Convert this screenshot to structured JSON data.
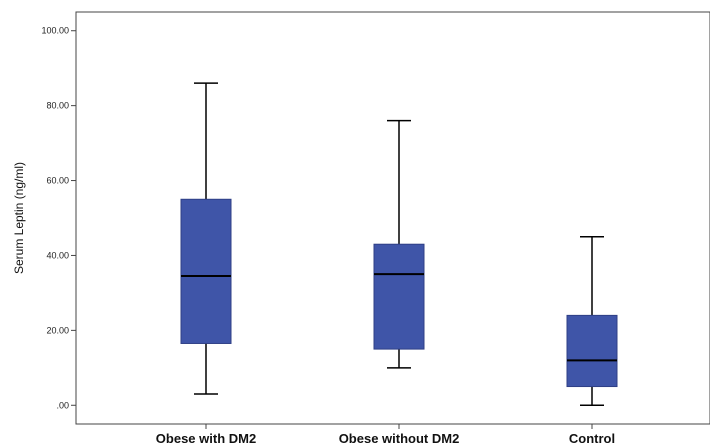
{
  "chart_data": {
    "type": "boxplot",
    "xlabel": "",
    "ylabel": "Serum Leptin (ng/ml)",
    "ylim": [
      -5,
      105
    ],
    "yticks": [
      0,
      20,
      40,
      60,
      80,
      100
    ],
    "ytick_labels": [
      ".00",
      "20.00",
      "40.00",
      "60.00",
      "80.00",
      "100.00"
    ],
    "grid": false,
    "box_color": "#3f55a8",
    "box_edge_color": "#2f3f86",
    "median_color": "#000000",
    "categories": [
      "Obese with DM2",
      "Obese without DM2",
      "Control"
    ],
    "boxes": [
      {
        "min": 3,
        "q1": 16.5,
        "median": 34.5,
        "q3": 55,
        "max": 86
      },
      {
        "min": 10,
        "q1": 15,
        "median": 35,
        "q3": 43,
        "max": 76
      },
      {
        "min": 0,
        "q1": 5,
        "median": 12,
        "q3": 24,
        "max": 45
      }
    ]
  }
}
